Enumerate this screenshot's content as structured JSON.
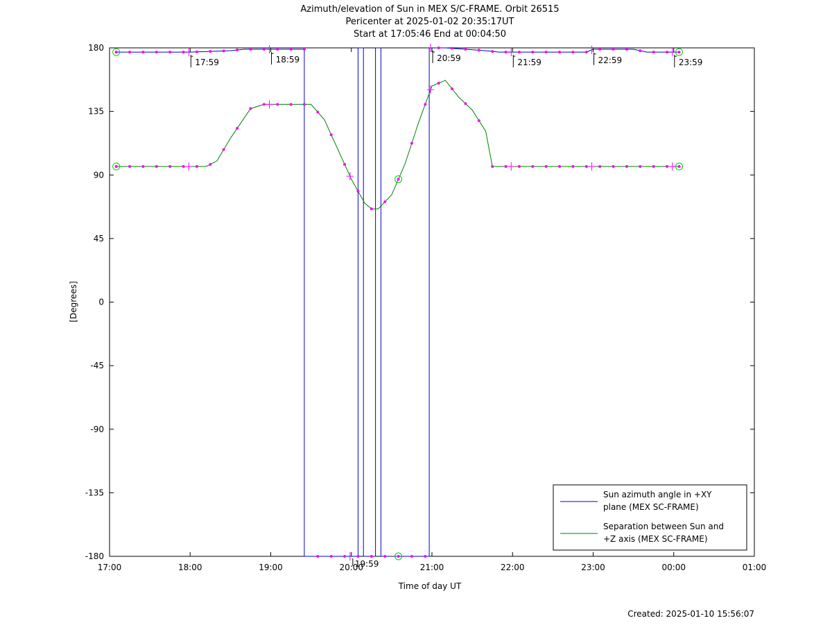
{
  "chart_data": {
    "type": "line",
    "title": "Azimuth/elevation of Sun in MEX S/C-FRAME.  Orbit 26515",
    "subtitle_lines": [
      "Pericenter at 2025-01-02 20:35:17UT",
      "Start at 17:05:46 End at 00:04:50"
    ],
    "xlabel": "Time of day UT",
    "ylabel": "[Degrees]",
    "xlim": [
      "17:00",
      "01:00"
    ],
    "ylim": [
      -180,
      180
    ],
    "x_ticks": [
      "17:00",
      "18:00",
      "19:00",
      "20:00",
      "21:00",
      "22:00",
      "23:00",
      "00:00",
      "01:00"
    ],
    "y_ticks": [
      180,
      135,
      90,
      45,
      0,
      -45,
      -90,
      -135,
      -180
    ],
    "legend_position": "bottom-right",
    "time_markers": [
      "17:59",
      "18:59",
      "19:59",
      "20:59",
      "21:59",
      "22:59",
      "23:59"
    ],
    "series": [
      {
        "name_lines": [
          "Sun azimuth angle in +XY",
          "plane (MEX SC-FRAME)"
        ],
        "color": "#0000cc",
        "x": [
          "17:05",
          "18:00",
          "18:30",
          "18:40",
          "19:00",
          "19:20",
          "19:25",
          "19:25",
          "20:05",
          "20:05",
          "20:09",
          "20:09",
          "20:18",
          "20:18",
          "20:22",
          "20:22",
          "20:58",
          "20:58",
          "21:10",
          "21:25",
          "21:40",
          "21:50",
          "22:00",
          "22:30",
          "22:55",
          "23:00",
          "23:30",
          "23:40",
          "00:04"
        ],
        "y": [
          177,
          177,
          178,
          179,
          179,
          179,
          179,
          -180,
          -180,
          180,
          180,
          -180,
          -180,
          180,
          180,
          -180,
          -180,
          180,
          180,
          179,
          178,
          177,
          177,
          177,
          177,
          179,
          179,
          177,
          177
        ]
      },
      {
        "name_lines": [
          "Separation between Sun and",
          "+Z axis (MEX SC-FRAME)"
        ],
        "color": "#008000",
        "x": [
          "17:05",
          "18:00",
          "18:12",
          "18:20",
          "18:30",
          "18:45",
          "18:55",
          "19:00",
          "19:15",
          "19:30",
          "19:40",
          "19:50",
          "20:00",
          "20:10",
          "20:15",
          "20:20",
          "20:30",
          "20:40",
          "20:50",
          "21:00",
          "21:10",
          "21:20",
          "21:30",
          "21:40",
          "21:45",
          "22:00",
          "22:30",
          "23:00",
          "00:04"
        ],
        "y": [
          96,
          96,
          96,
          100,
          116,
          137,
          140,
          140,
          140,
          140,
          129,
          108,
          87,
          70,
          66,
          66,
          76,
          98,
          127,
          153,
          157,
          145,
          136,
          121,
          96,
          96,
          96,
          96,
          96
        ]
      }
    ],
    "pericenter_marker": "20:35"
  },
  "footer": {
    "created": "Created: 2025-01-10 15:56:07"
  }
}
